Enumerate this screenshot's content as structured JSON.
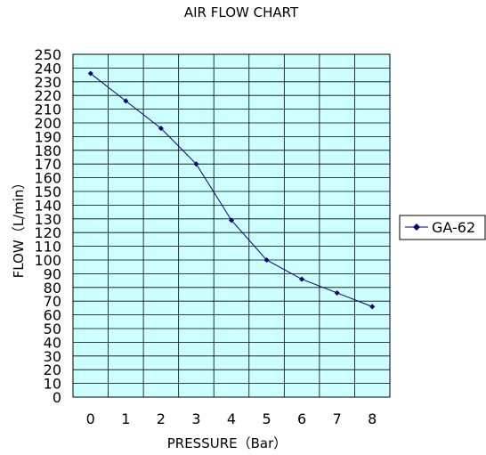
{
  "chart_data": {
    "type": "line",
    "title": "AIR FLOW CHART",
    "xlabel": "PRESSURE（Bar）",
    "ylabel": "FLOW（L/min）",
    "x": [
      0,
      1,
      2,
      3,
      4,
      5,
      6,
      7,
      8
    ],
    "xlim": [
      0,
      8
    ],
    "ylim": [
      0,
      250
    ],
    "ytick_step": 10,
    "grid": true,
    "legend_position": "right",
    "plot_background": "#ccffff",
    "grid_color": "#000000",
    "series": [
      {
        "name": "GA-62",
        "color": "#000080",
        "marker": "diamond",
        "values": [
          236,
          216,
          196,
          170,
          129,
          100,
          86,
          76,
          66
        ]
      }
    ]
  }
}
